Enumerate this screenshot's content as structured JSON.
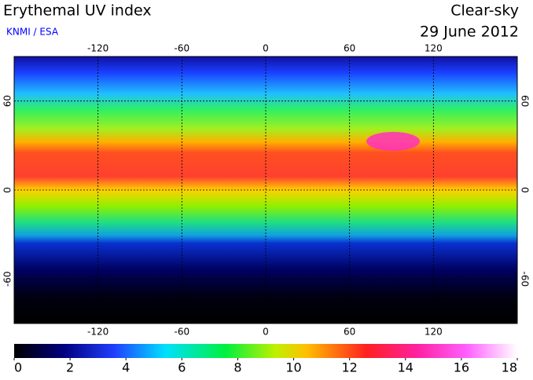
{
  "header": {
    "title": "Erythemal UV index",
    "source": "KNMI / ESA",
    "condition": "Clear-sky",
    "date": "29 June 2012"
  },
  "map": {
    "xlim": [
      -180,
      180
    ],
    "ylim": [
      -90,
      90
    ],
    "xticks": [
      -120,
      -60,
      0,
      60,
      120
    ],
    "yticks": [
      60,
      0,
      -60
    ],
    "grid": true
  },
  "colorbar": {
    "lim": [
      0,
      18
    ],
    "ticks": [
      0,
      2,
      4,
      6,
      8,
      10,
      12,
      14,
      16,
      18
    ]
  }
}
